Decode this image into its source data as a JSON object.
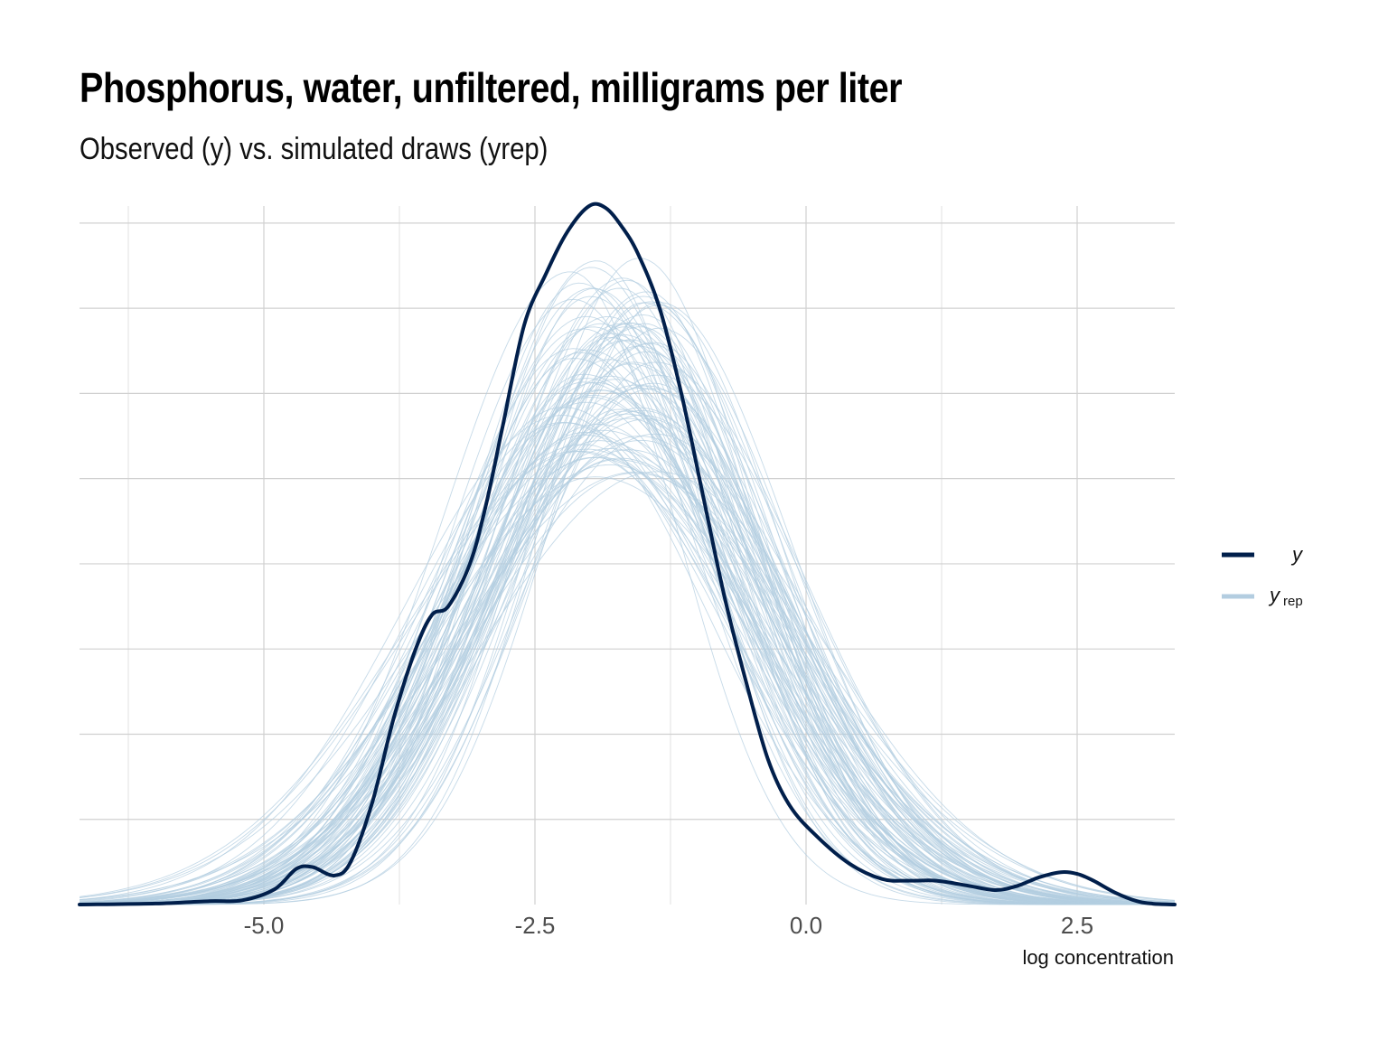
{
  "chart_data": {
    "type": "line",
    "title": "Phosphorus, water, unfiltered, milligrams per liter",
    "subtitle": "Observed (y) vs. simulated draws (yrep)",
    "xlabel": "log concentration",
    "ylabel": "",
    "xlim": [
      -6.7,
      3.4
    ],
    "ylim": [
      0,
      0.41
    ],
    "x_ticks": [
      -5.0,
      -2.5,
      0.0,
      2.5
    ],
    "x_tick_labels": [
      "-5.0",
      "-2.5",
      "0.0",
      "2.5"
    ],
    "grid": true,
    "legend_position": "right",
    "legend": [
      {
        "label": "y",
        "color": "#011f4b"
      },
      {
        "label": "y",
        "subscript": "rep",
        "color": "#b3cde0"
      }
    ],
    "y_series": {
      "name": "y",
      "color": "#011f4b",
      "x": [
        -6.7,
        -6.0,
        -5.5,
        -5.2,
        -4.9,
        -4.7,
        -4.55,
        -4.35,
        -4.2,
        -4.0,
        -3.8,
        -3.6,
        -3.45,
        -3.3,
        -3.1,
        -2.95,
        -2.8,
        -2.6,
        -2.4,
        -2.2,
        -2.0,
        -1.85,
        -1.7,
        -1.55,
        -1.35,
        -1.15,
        -0.95,
        -0.75,
        -0.55,
        -0.35,
        -0.15,
        0.1,
        0.4,
        0.7,
        0.95,
        1.2,
        1.5,
        1.75,
        1.95,
        2.15,
        2.35,
        2.5,
        2.65,
        2.85,
        3.05,
        3.2,
        3.4
      ],
      "y": [
        0.0,
        0.0006,
        0.002,
        0.0025,
        0.009,
        0.021,
        0.022,
        0.017,
        0.025,
        0.06,
        0.11,
        0.15,
        0.17,
        0.175,
        0.2,
        0.235,
        0.28,
        0.34,
        0.37,
        0.395,
        0.41,
        0.409,
        0.398,
        0.382,
        0.35,
        0.3,
        0.24,
        0.18,
        0.13,
        0.085,
        0.058,
        0.04,
        0.024,
        0.015,
        0.014,
        0.014,
        0.011,
        0.0085,
        0.011,
        0.016,
        0.019,
        0.018,
        0.014,
        0.007,
        0.002,
        0.0005,
        0.0
      ]
    },
    "yrep_series": {
      "name": "y_rep",
      "color": "#b3cde0",
      "count": 100,
      "shape": "approximately normal draws, peak near -1.8 to -1.6 on x, peak density 0.25 to 0.38"
    }
  }
}
